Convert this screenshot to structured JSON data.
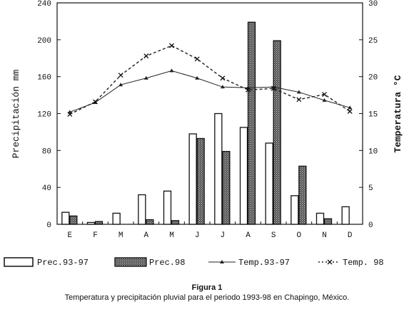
{
  "figure": {
    "label": "Figura 1",
    "caption": "Temperatura y precipitación pluvial para el periodo 1993-98 en Chapingo, México."
  },
  "chart_data": {
    "type": "bar",
    "categories": [
      "E",
      "F",
      "M",
      "A",
      "M",
      "J",
      "J",
      "A",
      "S",
      "O",
      "N",
      "D"
    ],
    "ylabel": "Precipitación mm",
    "y2label": "Temperatura °C",
    "ylim": [
      0,
      240
    ],
    "y2lim": [
      0,
      30
    ],
    "yticks": [
      "0",
      "40",
      "80",
      "120",
      "160",
      "200",
      "240"
    ],
    "y2ticks": [
      "0",
      "5",
      "10",
      "15",
      "20",
      "25",
      "30"
    ],
    "grid": false,
    "legend_position": "bottom",
    "series": [
      {
        "name": "Prec.93-97",
        "kind": "bar",
        "axis": "left",
        "fill": "#ffffff",
        "values": [
          13,
          2,
          12,
          32,
          36,
          98,
          120,
          105,
          88,
          31,
          12,
          19
        ]
      },
      {
        "name": "Prec.98",
        "kind": "bar",
        "axis": "left",
        "fill": "#333333",
        "values": [
          9,
          3,
          0,
          5,
          4,
          93,
          79,
          219,
          199,
          63,
          6,
          0
        ]
      },
      {
        "name": "Temp.93-97",
        "kind": "line",
        "axis": "right",
        "dash": "solid",
        "marker": "triangle",
        "values": [
          15.2,
          16.5,
          18.9,
          19.8,
          20.8,
          19.8,
          18.6,
          18.5,
          18.6,
          17.9,
          16.8,
          15.8
        ]
      },
      {
        "name": "Temp. 98",
        "kind": "line",
        "axis": "right",
        "dash": "dashed",
        "marker": "x",
        "values": [
          14.9,
          16.6,
          20.2,
          22.8,
          24.2,
          22.4,
          19.8,
          18.2,
          18.4,
          16.9,
          17.6,
          15.3
        ]
      }
    ]
  }
}
